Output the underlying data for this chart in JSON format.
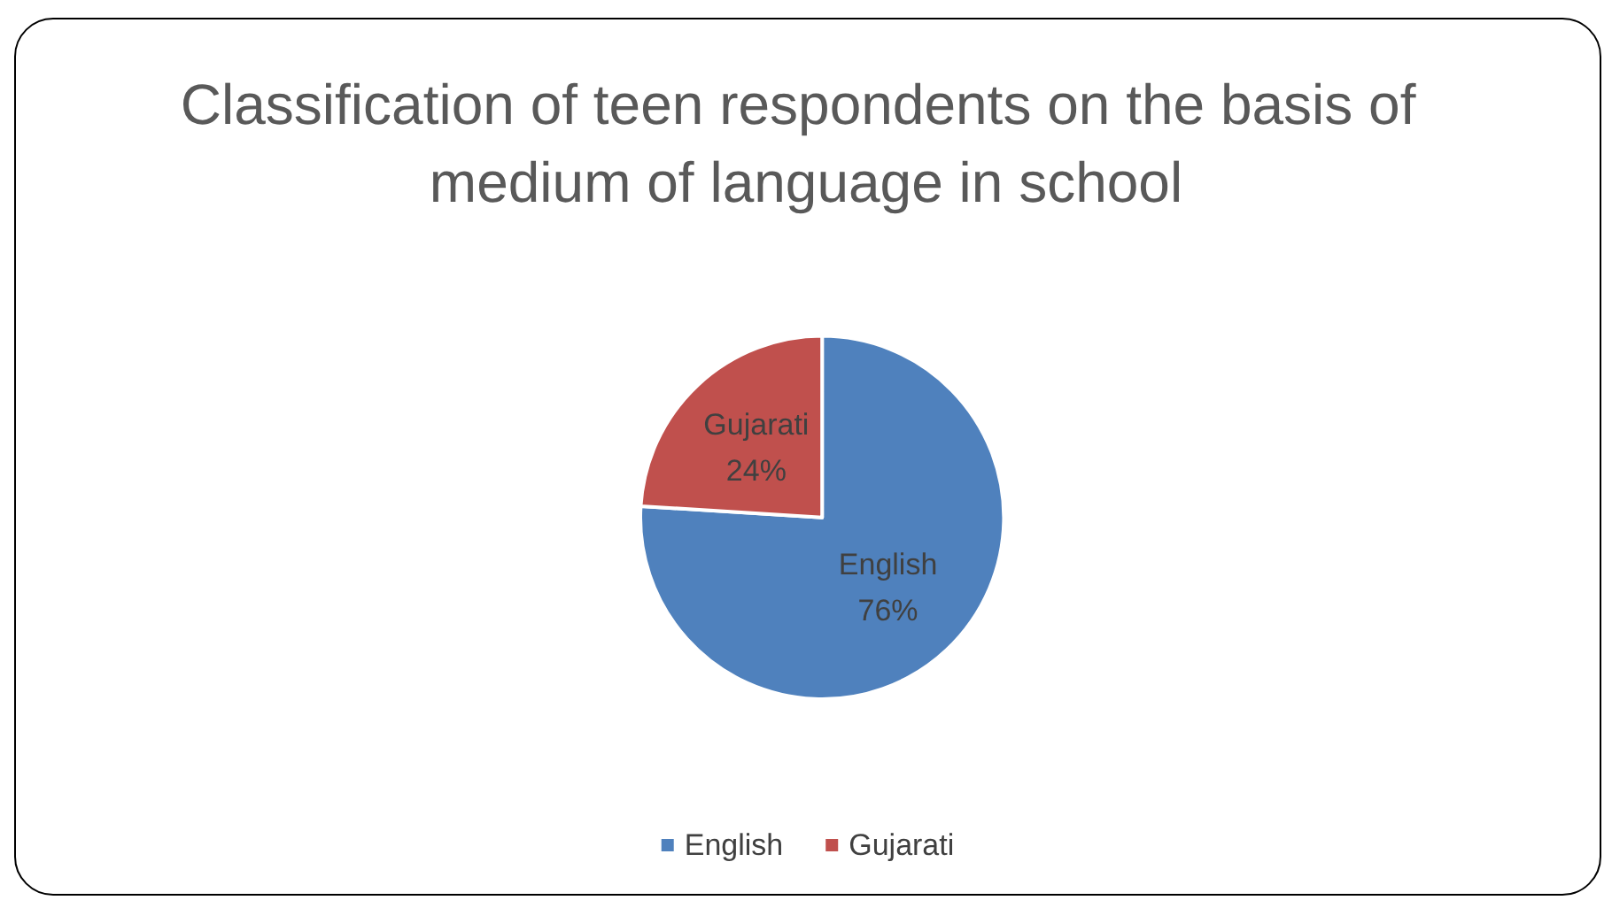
{
  "chart_data": {
    "type": "pie",
    "title": "Classification of teen respondents on the basis of medium of language in school",
    "categories": [
      "English",
      "Gujarati"
    ],
    "values": [
      76,
      24
    ],
    "colors": [
      "#4f81bd",
      "#c0504d"
    ],
    "value_labels": [
      "76%",
      "24%"
    ],
    "legend": "bottom"
  }
}
